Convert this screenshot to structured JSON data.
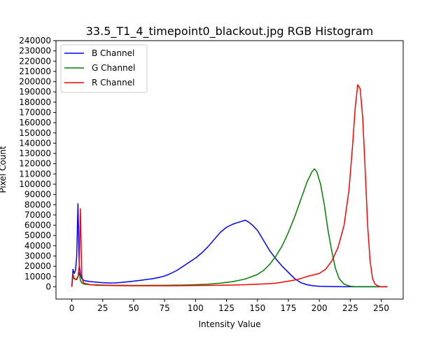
{
  "chart_data": {
    "type": "line",
    "title": "33.5_T1_4_timepoint0_blackout.jpg RGB Histogram",
    "xlabel": "Intensity Value",
    "ylabel": "Pixel Count",
    "xlim": [
      -12.75,
      267.75
    ],
    "ylim": [
      -12000,
      240000
    ],
    "xticks": [
      0,
      25,
      50,
      75,
      100,
      125,
      150,
      175,
      200,
      225,
      250
    ],
    "yticks": [
      0,
      10000,
      20000,
      30000,
      40000,
      50000,
      60000,
      70000,
      80000,
      90000,
      100000,
      110000,
      120000,
      130000,
      140000,
      150000,
      160000,
      170000,
      180000,
      190000,
      200000,
      210000,
      220000,
      230000,
      240000
    ],
    "grid": false,
    "legend_position": "upper-left",
    "series": [
      {
        "name": "B Channel",
        "color": "#0000ff",
        "points": [
          [
            0,
            0
          ],
          [
            1,
            17000
          ],
          [
            2,
            13000
          ],
          [
            3,
            16000
          ],
          [
            4,
            30000
          ],
          [
            5,
            81000
          ],
          [
            6,
            22000
          ],
          [
            7,
            12000
          ],
          [
            8,
            8000
          ],
          [
            10,
            6000
          ],
          [
            15,
            5000
          ],
          [
            20,
            4500
          ],
          [
            25,
            4000
          ],
          [
            30,
            3700
          ],
          [
            35,
            3800
          ],
          [
            40,
            4200
          ],
          [
            45,
            4800
          ],
          [
            50,
            5500
          ],
          [
            55,
            6200
          ],
          [
            60,
            7000
          ],
          [
            65,
            7800
          ],
          [
            70,
            9000
          ],
          [
            75,
            10500
          ],
          [
            80,
            13000
          ],
          [
            85,
            16000
          ],
          [
            90,
            20000
          ],
          [
            95,
            24000
          ],
          [
            100,
            28000
          ],
          [
            105,
            33000
          ],
          [
            110,
            39000
          ],
          [
            115,
            46000
          ],
          [
            120,
            53000
          ],
          [
            125,
            58000
          ],
          [
            130,
            61000
          ],
          [
            135,
            63000
          ],
          [
            138,
            64000
          ],
          [
            140,
            65000
          ],
          [
            143,
            63000
          ],
          [
            146,
            60000
          ],
          [
            150,
            55000
          ],
          [
            155,
            45000
          ],
          [
            160,
            35000
          ],
          [
            165,
            27000
          ],
          [
            170,
            20000
          ],
          [
            175,
            14000
          ],
          [
            180,
            8000
          ],
          [
            185,
            4000
          ],
          [
            190,
            2000
          ],
          [
            195,
            1000
          ],
          [
            200,
            500
          ],
          [
            210,
            200
          ],
          [
            220,
            0
          ],
          [
            255,
            0
          ]
        ]
      },
      {
        "name": "G Channel",
        "color": "#008000",
        "points": [
          [
            0,
            0
          ],
          [
            1,
            10000
          ],
          [
            2,
            8000
          ],
          [
            3,
            7000
          ],
          [
            4,
            8000
          ],
          [
            5,
            10000
          ],
          [
            6,
            14000
          ],
          [
            7,
            6000
          ],
          [
            8,
            4000
          ],
          [
            10,
            2500
          ],
          [
            15,
            2000
          ],
          [
            20,
            1800
          ],
          [
            30,
            1500
          ],
          [
            40,
            1400
          ],
          [
            50,
            1300
          ],
          [
            60,
            1300
          ],
          [
            70,
            1400
          ],
          [
            80,
            1500
          ],
          [
            90,
            1700
          ],
          [
            100,
            2000
          ],
          [
            110,
            2500
          ],
          [
            120,
            3500
          ],
          [
            130,
            5000
          ],
          [
            140,
            7500
          ],
          [
            150,
            12000
          ],
          [
            155,
            16000
          ],
          [
            160,
            22000
          ],
          [
            165,
            30000
          ],
          [
            170,
            40000
          ],
          [
            175,
            53000
          ],
          [
            180,
            68000
          ],
          [
            185,
            85000
          ],
          [
            190,
            102000
          ],
          [
            194,
            112000
          ],
          [
            196,
            115000
          ],
          [
            198,
            112000
          ],
          [
            201,
            100000
          ],
          [
            204,
            80000
          ],
          [
            207,
            55000
          ],
          [
            210,
            35000
          ],
          [
            213,
            18000
          ],
          [
            216,
            8000
          ],
          [
            220,
            2500
          ],
          [
            225,
            500
          ],
          [
            230,
            0
          ],
          [
            255,
            0
          ]
        ]
      },
      {
        "name": "R Channel",
        "color": "#ff0000",
        "points": [
          [
            0,
            0
          ],
          [
            1,
            12000
          ],
          [
            2,
            8000
          ],
          [
            3,
            7000
          ],
          [
            4,
            7000
          ],
          [
            5,
            10000
          ],
          [
            6,
            20000
          ],
          [
            7,
            76000
          ],
          [
            8,
            12000
          ],
          [
            9,
            5000
          ],
          [
            10,
            3500
          ],
          [
            15,
            2000
          ],
          [
            20,
            1500
          ],
          [
            30,
            1200
          ],
          [
            40,
            1100
          ],
          [
            50,
            1000
          ],
          [
            60,
            1000
          ],
          [
            70,
            1000
          ],
          [
            80,
            1000
          ],
          [
            90,
            1100
          ],
          [
            100,
            1200
          ],
          [
            110,
            1300
          ],
          [
            120,
            1500
          ],
          [
            130,
            1700
          ],
          [
            140,
            2000
          ],
          [
            150,
            2500
          ],
          [
            160,
            3000
          ],
          [
            165,
            3500
          ],
          [
            170,
            4500
          ],
          [
            175,
            5500
          ],
          [
            180,
            6500
          ],
          [
            185,
            8000
          ],
          [
            190,
            10000
          ],
          [
            195,
            11500
          ],
          [
            200,
            13000
          ],
          [
            205,
            17000
          ],
          [
            210,
            25000
          ],
          [
            215,
            38000
          ],
          [
            220,
            60000
          ],
          [
            224,
            95000
          ],
          [
            227,
            140000
          ],
          [
            229,
            175000
          ],
          [
            231,
            197000
          ],
          [
            233,
            193000
          ],
          [
            235,
            165000
          ],
          [
            237,
            115000
          ],
          [
            239,
            60000
          ],
          [
            241,
            25000
          ],
          [
            243,
            8000
          ],
          [
            245,
            2500
          ],
          [
            248,
            500
          ],
          [
            250,
            0
          ],
          [
            255,
            0
          ]
        ]
      }
    ]
  }
}
